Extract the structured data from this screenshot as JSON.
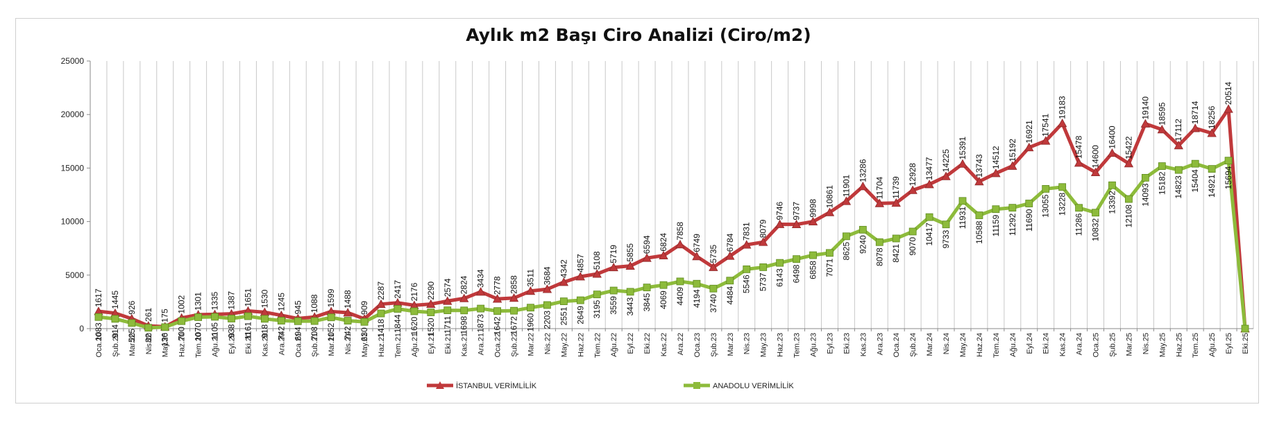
{
  "chart_data": {
    "type": "line",
    "title": "Aylık m2 Başı Ciro Analizi (Ciro/m2)",
    "xlabel": "",
    "ylabel": "",
    "ylim": [
      0,
      25000
    ],
    "yticks": [
      0,
      5000,
      10000,
      15000,
      20000,
      25000
    ],
    "grid": "vertical",
    "legend": "bottom",
    "categories": [
      "Oca.20",
      "Şub.20",
      "Mar.20",
      "Nis.20",
      "May.20",
      "Haz.20",
      "Tem.20",
      "Ağu.20",
      "Eyl.20",
      "Eki.20",
      "Kas.20",
      "Ara.20",
      "Oca.21",
      "Şub.21",
      "Mar.21",
      "Nis.21",
      "May.21",
      "Haz.21",
      "Tem.21",
      "Ağu.21",
      "Eyl.21",
      "Eki.21",
      "Kas.21",
      "Ara.21",
      "Oca.22",
      "Şub.22",
      "Mar.22",
      "Nis.22",
      "May.22",
      "Haz.22",
      "Tem.22",
      "Ağu.22",
      "Eyl.22",
      "Eki.22",
      "Kas.22",
      "Ara.22",
      "Oca.23",
      "Şub.23",
      "Mar.23",
      "Nis.23",
      "May.23",
      "Haz.23",
      "Tem.23",
      "Ağu.23",
      "Eyl.23",
      "Eki.23",
      "Kas.23",
      "Ara.23",
      "Oca.24",
      "Şub.24",
      "Mar.24",
      "Nis.24",
      "May.24",
      "Haz.24",
      "Tem.24",
      "Ağu.24",
      "Eyl.24",
      "Eki.24",
      "Kas.24",
      "Ara.24",
      "Oca.25",
      "Şub.25",
      "Mar.25",
      "Nis.25",
      "May.25",
      "Haz.25",
      "Tem.25",
      "Ağu.25",
      "Eyl.25",
      "Eki.25"
    ],
    "series": [
      {
        "name": "İSTANBUL VERİMLİLİK",
        "color": "#c0393b",
        "marker": "triangle",
        "values": [
          1617,
          1445,
          926,
          261,
          175,
          1002,
          1301,
          1335,
          1387,
          1651,
          1530,
          1245,
          945,
          1088,
          1599,
          1488,
          909,
          2287,
          2417,
          2176,
          2290,
          2574,
          2824,
          3434,
          2778,
          2858,
          3511,
          3684,
          4342,
          4857,
          5108,
          5719,
          5855,
          6594,
          6824,
          7858,
          6749,
          5735,
          6784,
          7831,
          8079,
          9746,
          9737,
          9998,
          10861,
          11901,
          13286,
          11704,
          11739,
          12928,
          13477,
          14225,
          15391,
          13743,
          14512,
          15192,
          16921,
          17541,
          19183,
          15478,
          14600,
          16400,
          15422,
          19140,
          18595,
          17112,
          18714,
          18256,
          20514,
          0
        ],
        "labels": [
          "1617",
          "1445",
          "926",
          "261",
          "175",
          "1002",
          "1301",
          "1335",
          "1387",
          "1651",
          "1530",
          "1245",
          "945",
          "1088",
          "1599",
          "1488",
          "909",
          "2287",
          "2417",
          "2176",
          "2290",
          "2574",
          "2824",
          "3434",
          "2778",
          "2858",
          "3511",
          "3684",
          "4342",
          "4857",
          "5108",
          "5719",
          "5855",
          "6594",
          "6824",
          "7858",
          "6749",
          "5735",
          "6784",
          "7831",
          "8079",
          "9746",
          "9737",
          "9998",
          "10861",
          "11901",
          "13286",
          "11704",
          "11739",
          "12928",
          "13477",
          "14225",
          "15391",
          "13743",
          "14512",
          "15192",
          "16921",
          "17541",
          "19183",
          "15478",
          "14600",
          "16400",
          "15422",
          "19140",
          "18595",
          "17112",
          "18714",
          "18256",
          "20514",
          ""
        ]
      },
      {
        "name": "ANADOLU VERİMLİLİK",
        "color": "#8dbb3b",
        "marker": "square",
        "values": [
          1083,
          914,
          525,
          82,
          136,
          700,
          1070,
          1105,
          938,
          1161,
          918,
          742,
          694,
          708,
          1052,
          742,
          630,
          1418,
          1844,
          1620,
          1520,
          1711,
          1698,
          1873,
          1642,
          1672,
          1960,
          2203,
          2551,
          2649,
          3195,
          3559,
          3443,
          3845,
          4069,
          4409,
          4194,
          3740,
          4484,
          5546,
          5737,
          6143,
          6498,
          6858,
          7071,
          8625,
          9240,
          8078,
          8421,
          9070,
          10417,
          9733,
          11931,
          10588,
          11159,
          11292,
          11690,
          13055,
          13228,
          11286,
          10832,
          13392,
          12108,
          14093,
          15182,
          14823,
          15404,
          14921,
          15694,
          0
        ],
        "labels": [
          "1083",
          "914",
          "525",
          "82",
          "136",
          "700",
          "1070",
          "1105",
          "938",
          "1161",
          "918",
          "742",
          "694",
          "708",
          "1052",
          "742",
          "630",
          "1418",
          "1844",
          "1620",
          "1520",
          "1711",
          "1698",
          "1873",
          "1642",
          "1672",
          "1960",
          "2203",
          "2551",
          "2649",
          "3195",
          "3559",
          "3443",
          "3845",
          "4069",
          "4409",
          "4194",
          "3740",
          "4484",
          "5546",
          "5737",
          "6143",
          "6498",
          "6858",
          "7071",
          "8625",
          "9240",
          "8078",
          "8421",
          "9070",
          "10417",
          "9733",
          "11931",
          "10588",
          "11159",
          "11292",
          "11690",
          "13055",
          "13228",
          "11286",
          "10832",
          "13392",
          "12108",
          "14093",
          "15182",
          "14823",
          "15404",
          "14921",
          "15694",
          ""
        ]
      }
    ]
  }
}
